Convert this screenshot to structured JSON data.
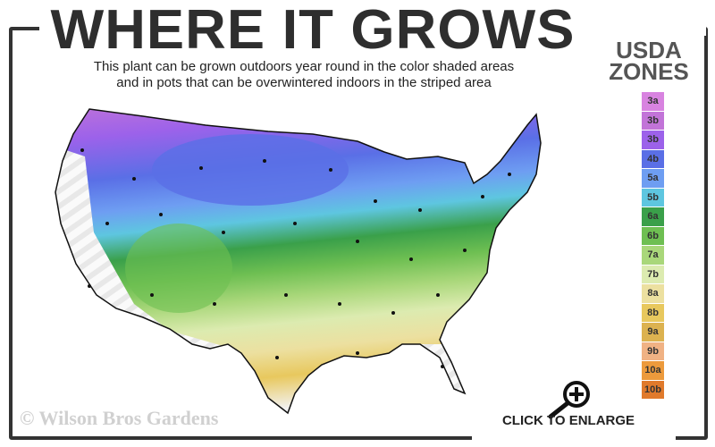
{
  "title": "WHERE IT GROWS",
  "subtitle_line1": "This plant can be grown outdoors year round in the color shaded areas",
  "subtitle_line2": "and in pots that can be overwintered indoors in the striped area",
  "legend": {
    "title_line1": "USDA",
    "title_line2": "ZONES",
    "zones": [
      {
        "label": "3a",
        "color": "#d883e0"
      },
      {
        "label": "3b",
        "color": "#c274d8"
      },
      {
        "label": "3b",
        "color": "#9c62ea"
      },
      {
        "label": "4b",
        "color": "#5a6fe6"
      },
      {
        "label": "5a",
        "color": "#6e9ef2"
      },
      {
        "label": "5b",
        "color": "#5ec6e0"
      },
      {
        "label": "6a",
        "color": "#3aa04a"
      },
      {
        "label": "6b",
        "color": "#6ebf52"
      },
      {
        "label": "7a",
        "color": "#a9d77a"
      },
      {
        "label": "7b",
        "color": "#dcebb0"
      },
      {
        "label": "8a",
        "color": "#ece0a0"
      },
      {
        "label": "8b",
        "color": "#e8c85e"
      },
      {
        "label": "9a",
        "color": "#dcb250"
      },
      {
        "label": "9b",
        "color": "#f0b284"
      },
      {
        "label": "10a",
        "color": "#ec9a3c"
      },
      {
        "label": "10b",
        "color": "#e07a2c"
      }
    ]
  },
  "copyright": "© Wilson Bros Gardens",
  "enlarge_label": "CLICK TO ENLARGE",
  "icons": {
    "enlarge": "magnifier-plus-icon"
  }
}
